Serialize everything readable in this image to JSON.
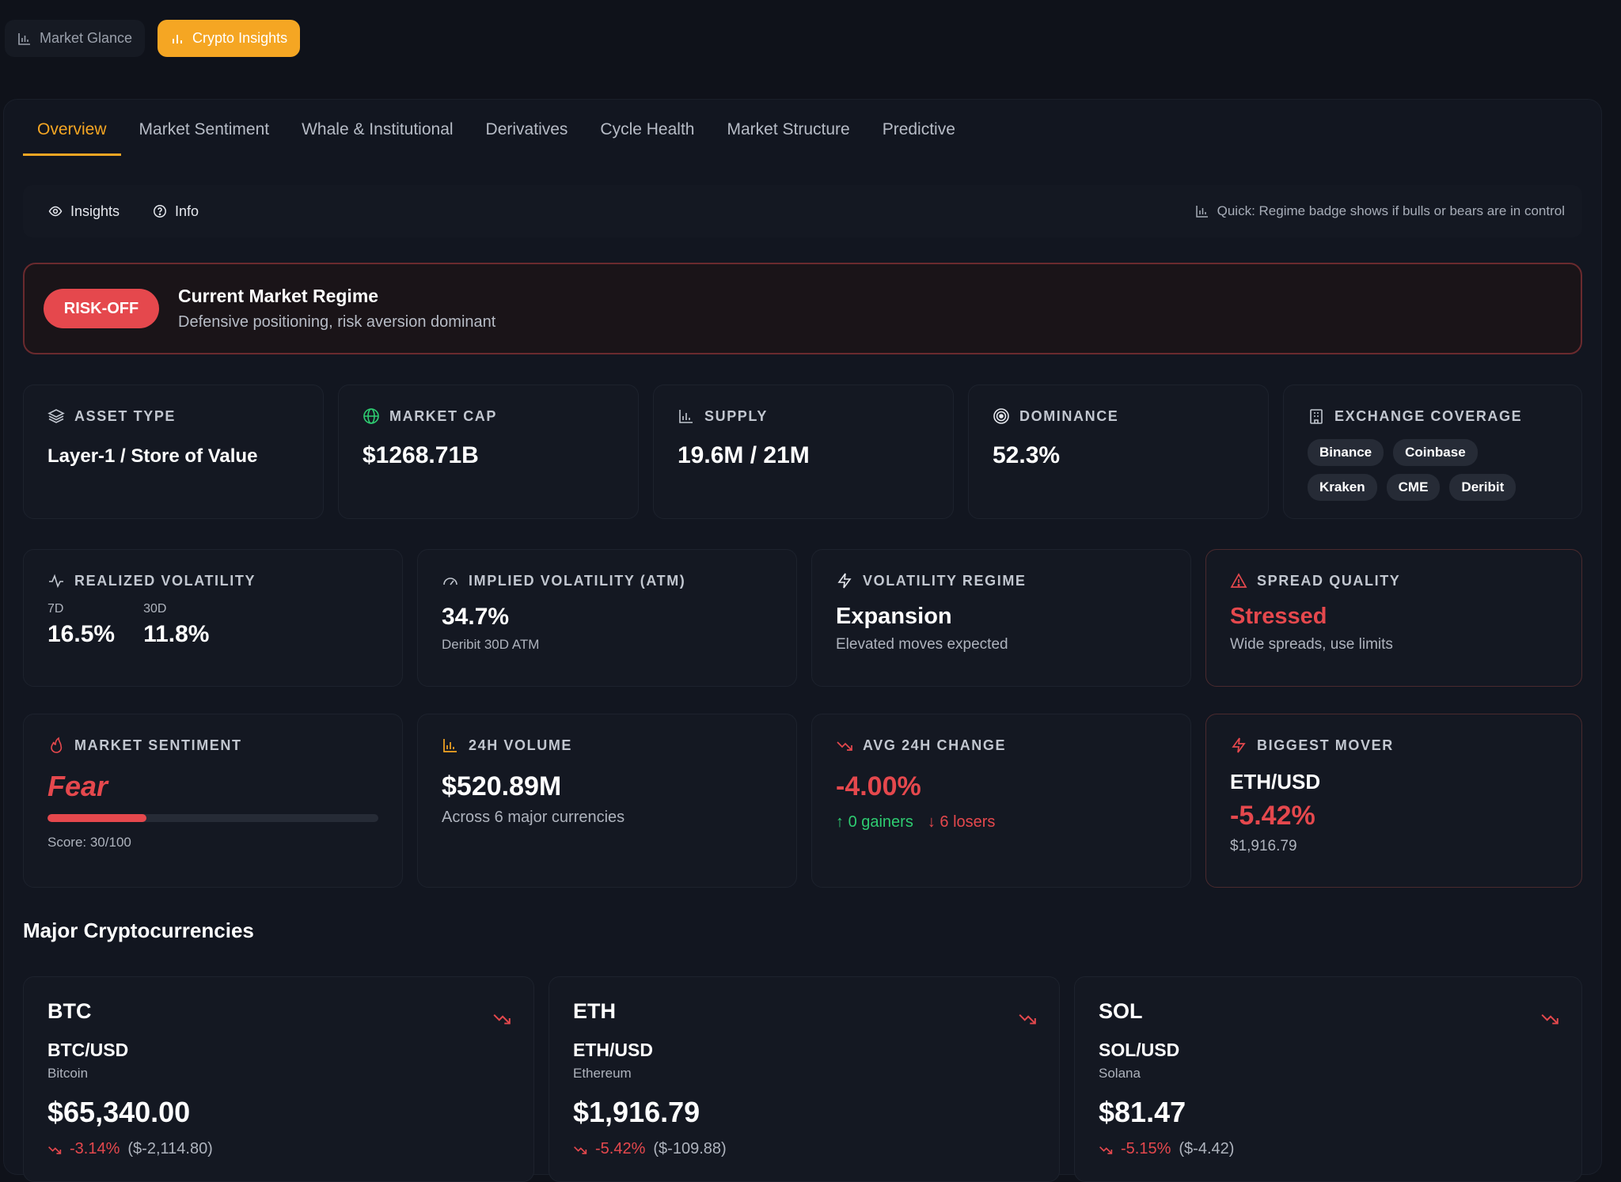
{
  "topnav": {
    "market_glance": "Market Glance",
    "crypto_insights": "Crypto Insights"
  },
  "tabs": [
    "Overview",
    "Market Sentiment",
    "Whale & Institutional",
    "Derivatives",
    "Cycle Health",
    "Market Structure",
    "Predictive"
  ],
  "toolbar": {
    "insights": "Insights",
    "info": "Info",
    "quick": "Quick: Regime badge shows if bulls or bears are in control"
  },
  "regime": {
    "badge": "RISK-OFF",
    "title": "Current Market Regime",
    "subtitle": "Defensive positioning, risk aversion dominant"
  },
  "stats": {
    "asset_type": {
      "label": "ASSET TYPE",
      "value": "Layer-1 / Store of Value"
    },
    "market_cap": {
      "label": "MARKET CAP",
      "value": "$1268.71B"
    },
    "supply": {
      "label": "SUPPLY",
      "value": "19.6M / 21M"
    },
    "dominance": {
      "label": "DOMINANCE",
      "value": "52.3%"
    },
    "exchange": {
      "label": "EXCHANGE COVERAGE",
      "chips": [
        "Binance",
        "Coinbase",
        "Kraken",
        "CME",
        "Deribit"
      ]
    }
  },
  "volatility": {
    "realized": {
      "label": "REALIZED VOLATILITY",
      "k7": "7D",
      "v7": "16.5%",
      "k30": "30D",
      "v30": "11.8%"
    },
    "implied": {
      "label": "IMPLIED VOLATILITY (ATM)",
      "value": "34.7%",
      "sub": "Deribit 30D ATM"
    },
    "regime": {
      "label": "VOLATILITY REGIME",
      "value": "Expansion",
      "sub": "Elevated moves expected"
    },
    "spread": {
      "label": "SPREAD QUALITY",
      "value": "Stressed",
      "sub": "Wide spreads, use limits"
    }
  },
  "market": {
    "sentiment": {
      "label": "MARKET SENTIMENT",
      "value": "Fear",
      "score": "Score: 30/100",
      "score_fraction": 0.3
    },
    "volume": {
      "label": "24H VOLUME",
      "value": "$520.89M",
      "sub": "Across 6 major currencies"
    },
    "avg_change": {
      "label": "AVG 24H CHANGE",
      "value": "-4.00%",
      "gainers": "0 gainers",
      "losers": "6 losers"
    },
    "mover": {
      "label": "BIGGEST MOVER",
      "pair": "ETH/USD",
      "change": "-5.42%",
      "price": "$1,916.79"
    }
  },
  "section_title": "Major Cryptocurrencies",
  "cryptos": [
    {
      "sym": "BTC",
      "pair": "BTC/USD",
      "name": "Bitcoin",
      "price": "$65,340.00",
      "pct": "-3.14%",
      "abs": "($-2,114.80)"
    },
    {
      "sym": "ETH",
      "pair": "ETH/USD",
      "name": "Ethereum",
      "price": "$1,916.79",
      "pct": "-5.42%",
      "abs": "($-109.88)"
    },
    {
      "sym": "SOL",
      "pair": "SOL/USD",
      "name": "Solana",
      "price": "$81.47",
      "pct": "-5.15%",
      "abs": "($-4.42)"
    }
  ],
  "colors": {
    "accent": "#f5a623",
    "negative": "#e5484d",
    "positive": "#2ecc71",
    "background": "#0f121a"
  }
}
